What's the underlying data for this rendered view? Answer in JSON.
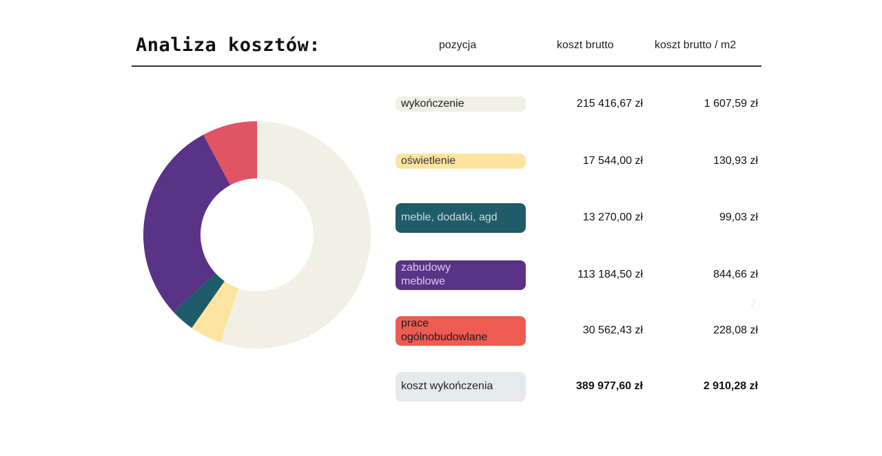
{
  "title": "Analiza kosztów:",
  "headers": [
    "pozycja",
    "koszt brutto",
    "koszt brutto / m2"
  ],
  "rows": [
    {
      "label": "wykończenie",
      "gross": "215 416,67 zł",
      "per_m2": "1 607,59 zł",
      "color": "#f0f0e5",
      "text_color": "#222222"
    },
    {
      "label": "oświetlenie",
      "gross": "17 544,00 zł",
      "per_m2": "130,93 zł",
      "color": "#fde5a1",
      "text_color": "#333333"
    },
    {
      "label": "meble, dodatki, agd",
      "gross": "13 270,00 zł",
      "per_m2": "99,03 zł",
      "color": "#1f5b69",
      "text_color": "#c9dde0"
    },
    {
      "label": "zabudowy meblowe",
      "gross": "113 184,50 zł",
      "per_m2": "844,66 zł",
      "color": "#5a3286",
      "text_color": "#dccdf0"
    },
    {
      "label": "prace ogólnobudowlane",
      "gross": "30 562,43 zł",
      "per_m2": "228,08 zł",
      "color": "#ee5b53",
      "text_color": "#1a1a1a"
    }
  ],
  "total": {
    "label": "koszt wykończenia",
    "gross": "389 977,60 zł",
    "per_m2": "2 910,28 zł",
    "color": "#e8e9ec"
  },
  "stray_mark": "2",
  "chart_data": {
    "type": "pie",
    "variant": "donut",
    "categories": [
      "wykończenie",
      "oświetlenie",
      "meble, dodatki, agd",
      "zabudowy meblowe",
      "prace ogólnobudowlane"
    ],
    "values": [
      215416.67,
      17544.0,
      13270.0,
      113184.5,
      30562.43
    ],
    "colors": [
      "#f0f0e5",
      "#fde5a1",
      "#1f5b69",
      "#5a3286",
      "#e05465"
    ],
    "start": "top",
    "direction": "clockwise"
  }
}
